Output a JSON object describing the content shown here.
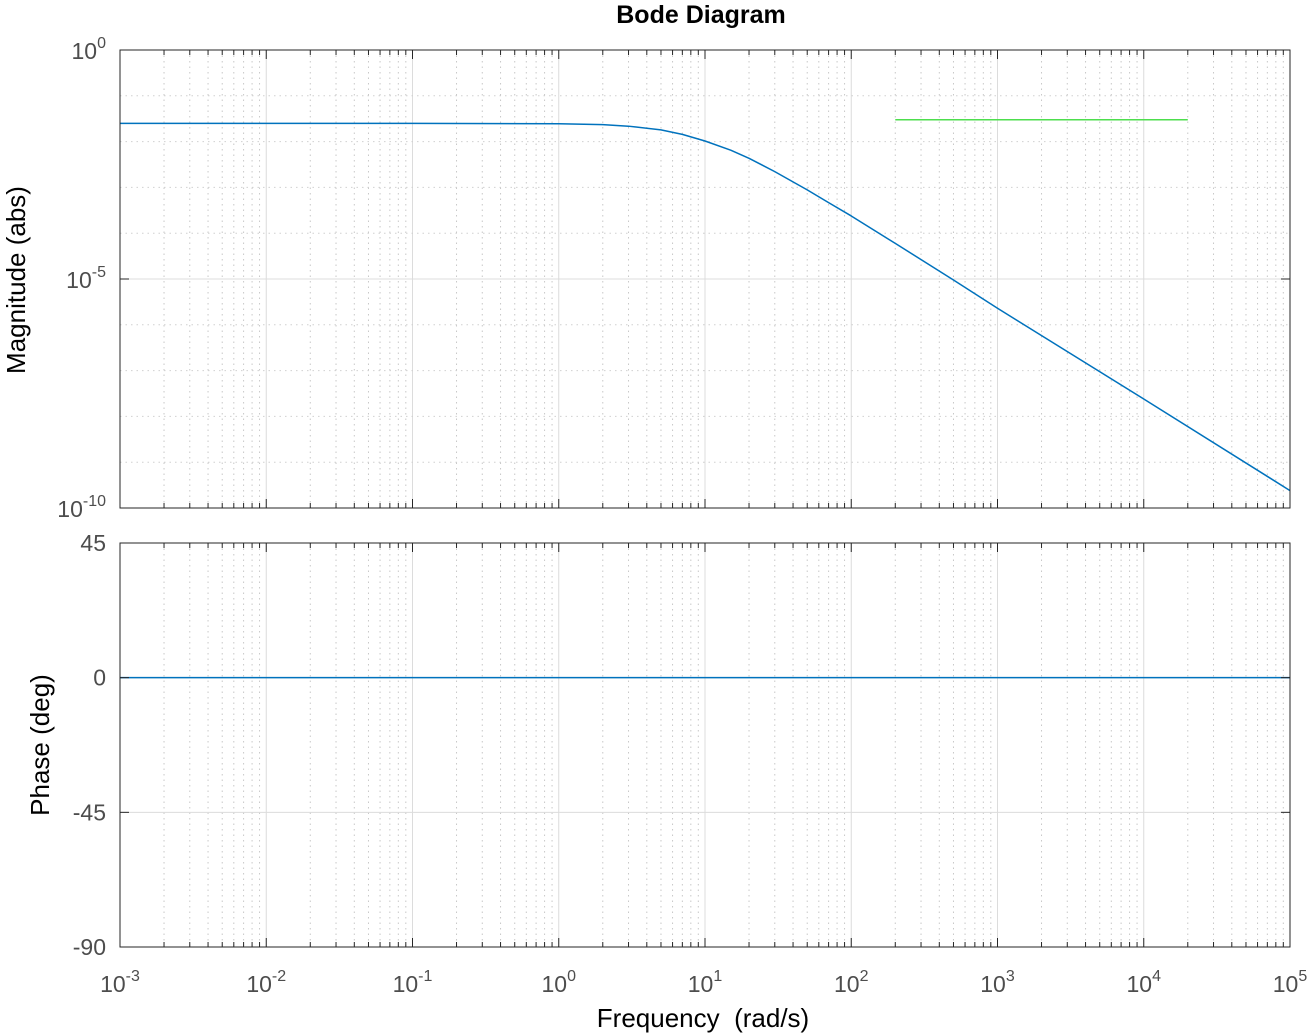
{
  "chart_data": {
    "type": "line",
    "title": "Bode Diagram",
    "xlabel": "Frequency  (rad/s)",
    "xscale": "log",
    "xlim": [
      0.001,
      100000
    ],
    "x_ticks": [
      {
        "base": "10",
        "exp": "-3",
        "value": 0.001
      },
      {
        "base": "10",
        "exp": "-2",
        "value": 0.01
      },
      {
        "base": "10",
        "exp": "-1",
        "value": 0.1
      },
      {
        "base": "10",
        "exp": "0",
        "value": 1
      },
      {
        "base": "10",
        "exp": "1",
        "value": 10
      },
      {
        "base": "10",
        "exp": "2",
        "value": 100
      },
      {
        "base": "10",
        "exp": "3",
        "value": 1000
      },
      {
        "base": "10",
        "exp": "4",
        "value": 10000
      },
      {
        "base": "10",
        "exp": "5",
        "value": 100000
      }
    ],
    "grid": true,
    "magnitude_panel": {
      "ylabel": "Magnitude (abs)",
      "yscale": "log",
      "ylim": [
        1e-10,
        1
      ],
      "y_ticks": [
        {
          "base": "10",
          "exp": "0",
          "value": 1
        },
        {
          "base": "10",
          "exp": "-5",
          "value": 1e-05
        },
        {
          "base": "10",
          "exp": "-10",
          "value": 1e-10
        }
      ],
      "series": [
        {
          "color": "#0072bd",
          "x": [
            0.001,
            0.01,
            0.1,
            1,
            2,
            3,
            5,
            7,
            10,
            15,
            20,
            30,
            50,
            70,
            100,
            200,
            500,
            1000,
            10000,
            100000
          ],
          "y": [
            0.025,
            0.025,
            0.025,
            0.0245,
            0.0235,
            0.0217,
            0.018,
            0.0144,
            0.0103,
            0.00648,
            0.00432,
            0.00221,
            0.000882,
            0.000465,
            0.000238,
            6e-05,
            9.5e-06,
            2.3e-06,
            2.4e-08,
            2.4e-10
          ]
        },
        {
          "color": "#4dde4d",
          "x": [
            200,
            20000
          ],
          "y": [
            0.03,
            0.03
          ]
        }
      ]
    },
    "phase_panel": {
      "ylabel": "Phase (deg)",
      "yscale": "linear",
      "ylim": [
        -90,
        45
      ],
      "y_ticks": [
        {
          "label": "45",
          "value": 45
        },
        {
          "label": "0",
          "value": 0
        },
        {
          "label": "-45",
          "value": -45
        },
        {
          "label": "-90",
          "value": -90
        }
      ],
      "series": [
        {
          "color": "#0072bd",
          "x": [
            0.001,
            100000
          ],
          "y": [
            0,
            0
          ]
        }
      ]
    }
  }
}
